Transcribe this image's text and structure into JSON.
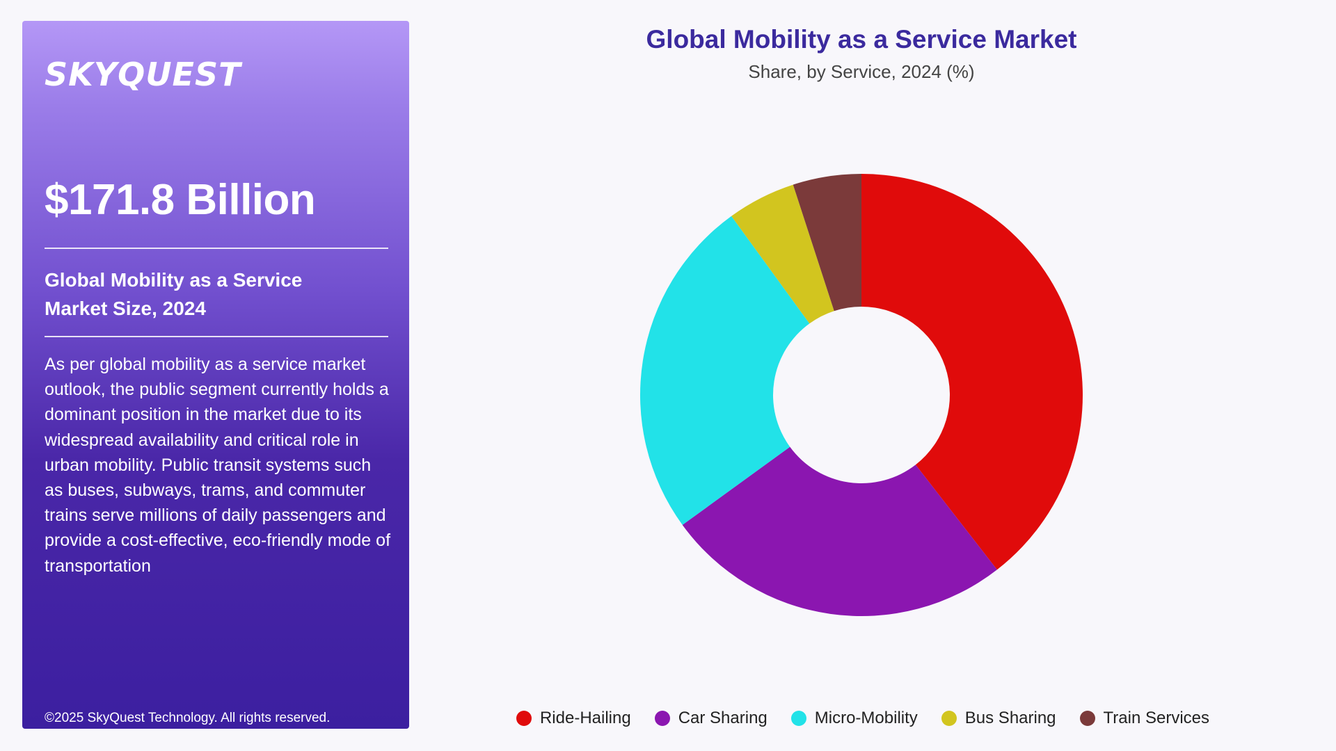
{
  "sidebar": {
    "logo": "SKYQUEST",
    "market_value": "$171.8 Billion",
    "market_label": "Global Mobility as a Service Market Size, 2024",
    "description": "As per global mobility as a service market outlook, the public segment currently holds a dominant position in the market due to its widespread availability and critical role in urban mobility. Public transit systems such as buses, subways, trams, and commuter trains serve millions of daily passengers and provide a cost-effective, eco-friendly mode of transportation",
    "copyright": "©2025 SkyQuest Technology. All rights reserved."
  },
  "chart_data": {
    "type": "pie",
    "variant": "donut",
    "title": "Global Mobility as a Service Market",
    "subtitle": "Share, by Service, 2024 (%)",
    "categories": [
      "Ride-Hailing",
      "Car Sharing",
      "Micro-Mobility",
      "Bus Sharing",
      "Train Services"
    ],
    "values": [
      39.5,
      25.5,
      25,
      5,
      5
    ],
    "colors": [
      "#e00b0b",
      "#8b16b0",
      "#22e2e8",
      "#d2c51f",
      "#7b3a3a"
    ],
    "legend_position": "bottom",
    "start_angle": "12 o'clock, clockwise"
  },
  "colors": {
    "title": "#3b2a9e",
    "panel_top": "#b497f6",
    "panel_bottom": "#3c1fa0"
  }
}
